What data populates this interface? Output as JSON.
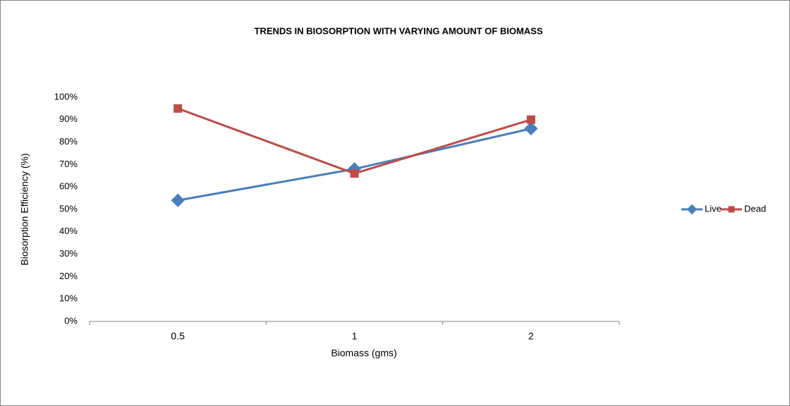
{
  "chart_data": {
    "type": "line",
    "title": "TRENDS IN BIOSORPTION WITH VARYING AMOUNT OF BIOMASS",
    "x_label": "Biomass (gms)",
    "y_label": "Biosorption Efficiency (%)",
    "categories": [
      "0.5",
      "1",
      "2"
    ],
    "series": [
      {
        "name": "Live",
        "color": "#4a7ebb",
        "marker": "diamond",
        "values": [
          54,
          68,
          86
        ]
      },
      {
        "name": "Dead",
        "color": "#be4b48",
        "marker": "square",
        "values": [
          95,
          66,
          90
        ]
      }
    ],
    "ylim": [
      0,
      100
    ],
    "yticks": [
      {
        "value": 0,
        "label": "0%"
      },
      {
        "value": 10,
        "label": "10%"
      },
      {
        "value": 20,
        "label": "20%"
      },
      {
        "value": 30,
        "label": "30%"
      },
      {
        "value": 40,
        "label": "40%"
      },
      {
        "value": 50,
        "label": "50%"
      },
      {
        "value": 60,
        "label": "60%"
      },
      {
        "value": 70,
        "label": "70%"
      },
      {
        "value": 80,
        "label": "80%"
      },
      {
        "value": 90,
        "label": "90%"
      },
      {
        "value": 100,
        "label": "100%"
      }
    ],
    "grid": false,
    "legend": "right"
  }
}
